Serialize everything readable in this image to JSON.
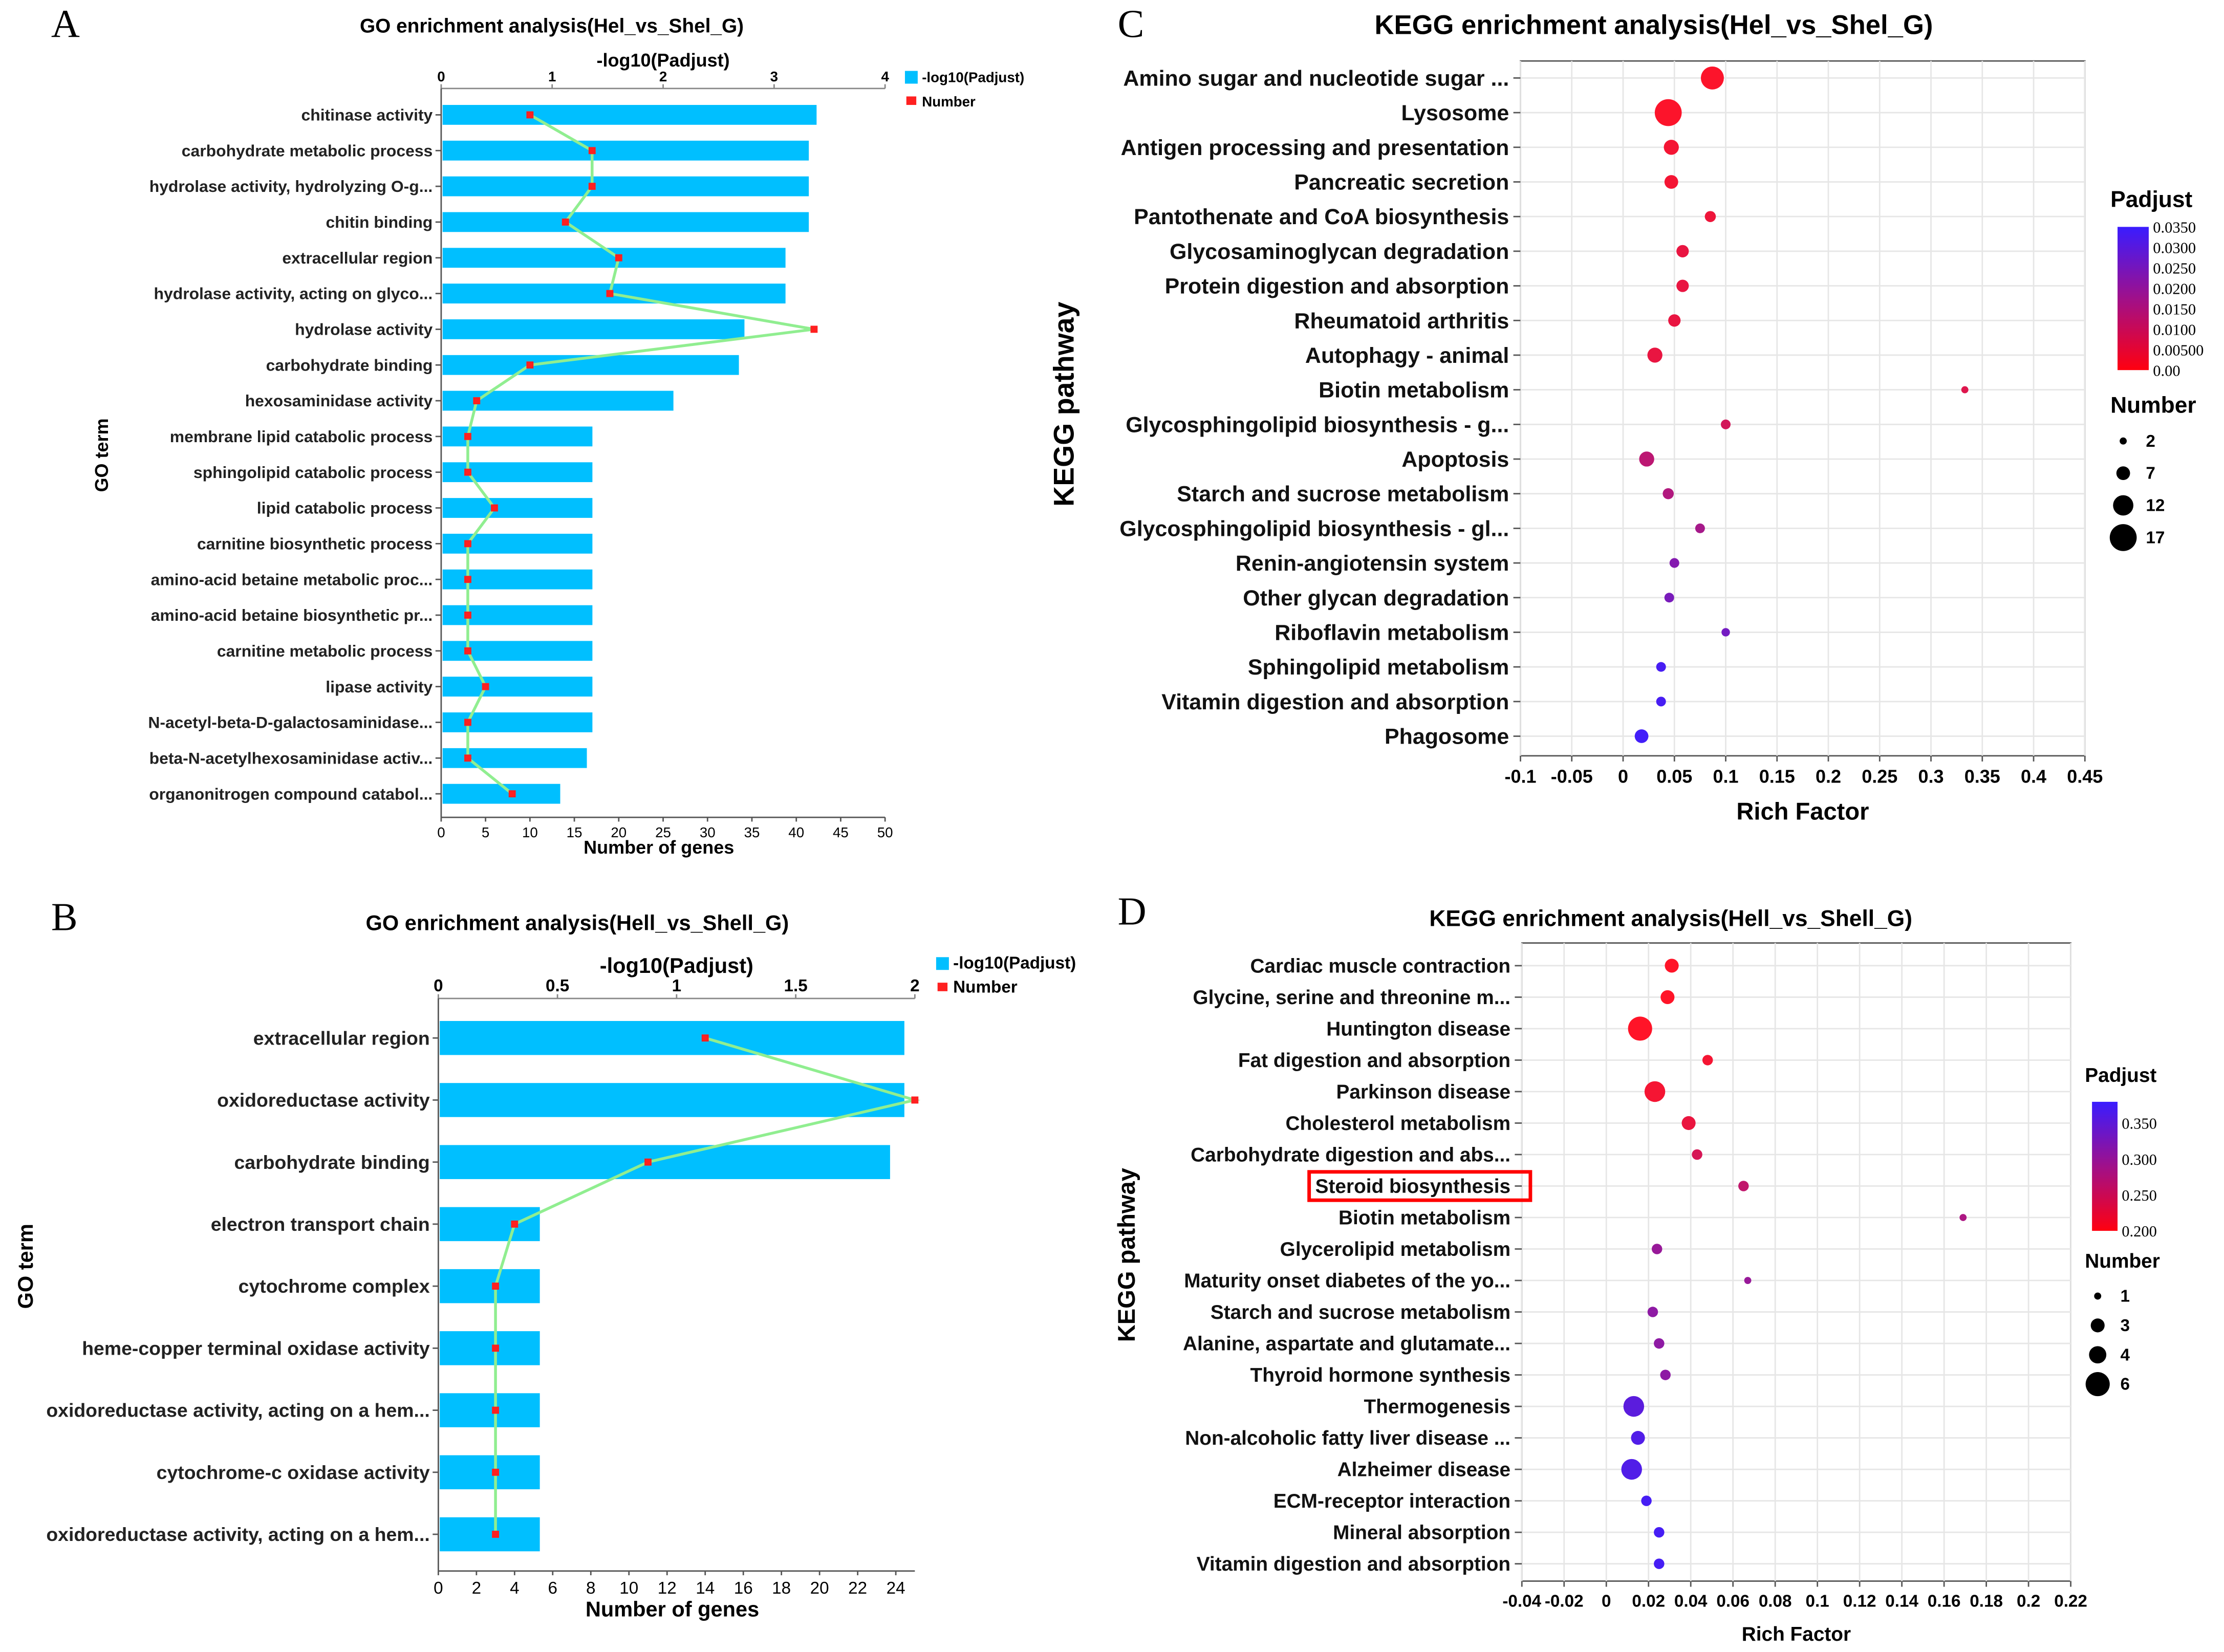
{
  "panels": [
    "A",
    "B",
    "C",
    "D"
  ],
  "colors": {
    "bar": "#00BFFF",
    "line": "#90EE90",
    "marker": "#FF2020",
    "grid": "#e6e6e6",
    "highlight": "#ff0000"
  },
  "chart_data": [
    {
      "type": "bar",
      "panel": "A",
      "title": "GO enrichment analysis(Hel_vs_Shel_G)",
      "ylabel": "GO term",
      "top_axis_label": "-log10(Padjust)",
      "xlabel": "Number of genes",
      "top_xlim": [
        0,
        4
      ],
      "top_ticks": [
        0,
        1,
        2,
        3,
        4
      ],
      "bottom_xlim": [
        0,
        50
      ],
      "bottom_ticks": [
        0,
        5,
        10,
        15,
        20,
        25,
        30,
        35,
        40,
        45,
        50
      ],
      "legend": [
        "-log10(Padjust)",
        "Number"
      ],
      "legend_position": "top-right",
      "categories": [
        "chitinase activity",
        "carbohydrate metabolic process",
        "hydrolase activity, hydrolyzing O-g...",
        "chitin binding",
        "extracellular region",
        "hydrolase activity, acting on glyco...",
        "hydrolase activity",
        "carbohydrate binding",
        "hexosaminidase activity",
        "membrane lipid catabolic process",
        "sphingolipid catabolic process",
        "lipid catabolic process",
        "carnitine biosynthetic process",
        "amino-acid betaine metabolic proc...",
        "amino-acid betaine biosynthetic pr...",
        "carnitine metabolic process",
        "lipase activity",
        "N-acetyl-beta-D-galactosaminidase...",
        "beta-N-acetylhexosaminidase activ...",
        "organonitrogen compound catabol..."
      ],
      "series": [
        {
          "name": "-log10(Padjust)",
          "values": [
            3.37,
            3.3,
            3.3,
            3.3,
            3.09,
            3.09,
            2.72,
            2.67,
            2.08,
            1.35,
            1.35,
            1.35,
            1.35,
            1.35,
            1.35,
            1.35,
            1.35,
            1.35,
            1.3,
            1.06
          ]
        },
        {
          "name": "Number",
          "values": [
            10,
            17,
            17,
            14,
            20,
            19,
            42,
            10,
            4,
            3,
            3,
            6,
            3,
            3,
            3,
            3,
            5,
            3,
            3,
            8
          ]
        }
      ]
    },
    {
      "type": "bar",
      "panel": "B",
      "title": "GO enrichment analysis(Hell_vs_Shell_G)",
      "ylabel": "GO term",
      "top_axis_label": "-log10(Padjust)",
      "xlabel": "Number of genes",
      "top_xlim": [
        0,
        2
      ],
      "top_ticks": [
        0,
        0.5,
        1,
        1.5,
        2
      ],
      "bottom_xlim": [
        0,
        25
      ],
      "bottom_ticks": [
        0,
        2,
        4,
        6,
        8,
        10,
        12,
        14,
        16,
        18,
        20,
        22,
        24
      ],
      "legend": [
        "-log10(Padjust)",
        "Number"
      ],
      "legend_position": "top-right",
      "categories": [
        "extracellular region",
        "oxidoreductase activity",
        "carbohydrate binding",
        "electron transport chain",
        "cytochrome complex",
        "heme-copper terminal oxidase activity",
        "oxidoreductase activity, acting on a hem...",
        "cytochrome-c oxidase activity",
        "oxidoreductase activity, acting on a hem..."
      ],
      "series": [
        {
          "name": "-log10(Padjust)",
          "values": [
            1.95,
            1.95,
            1.89,
            0.42,
            0.42,
            0.42,
            0.42,
            0.42,
            0.42
          ]
        },
        {
          "name": "Number",
          "values": [
            14,
            25,
            11,
            4,
            3,
            3,
            3,
            3,
            3
          ]
        }
      ]
    },
    {
      "type": "scatter",
      "panel": "C",
      "title": "KEGG enrichment analysis(Hel_vs_Shel_G)",
      "xlabel": "Rich Factor",
      "ylabel": "KEGG pathway",
      "xlim": [
        -0.1,
        0.45
      ],
      "xticks": [
        "-0.1",
        "-0.05",
        "0",
        "0.05",
        "0.1",
        "0.15",
        "0.2",
        "0.25",
        "0.3",
        "0.35",
        "0.4",
        "0.45"
      ],
      "grid": true,
      "color_legend": {
        "title": "Padjust",
        "range": [
          0,
          0.035
        ],
        "ticks": [
          "0.0350",
          "0.0300",
          "0.0250",
          "0.0200",
          "0.0150",
          "0.0100",
          "0.00500",
          "0.00"
        ]
      },
      "size_legend": {
        "title": "Number",
        "values": [
          2,
          7,
          12,
          17
        ]
      },
      "legend_position": "right",
      "categories": [
        "Amino sugar and nucleotide sugar ...",
        "Lysosome",
        "Antigen processing and presentation",
        "Pancreatic secretion",
        "Pantothenate and CoA biosynthesis",
        "Glycosaminoglycan degradation",
        "Protein digestion and absorption",
        "Rheumatoid arthritis",
        "Autophagy - animal",
        "Biotin metabolism",
        "Glycosphingolipid biosynthesis - g...",
        "Apoptosis",
        "Starch and sucrose metabolism",
        "Glycosphingolipid biosynthesis - gl...",
        "Renin-angiotensin system",
        "Other glycan degradation",
        "Riboflavin metabolism",
        "Sphingolipid metabolism",
        "Vitamin digestion and absorption",
        "Phagosome"
      ],
      "rich_factor": [
        0.087,
        0.044,
        0.047,
        0.047,
        0.085,
        0.058,
        0.058,
        0.05,
        0.031,
        0.333,
        0.1,
        0.023,
        0.044,
        0.075,
        0.05,
        0.045,
        0.1,
        0.037,
        0.037,
        0.018
      ],
      "number": [
        14,
        17,
        8,
        7,
        5,
        6,
        6,
        6,
        8,
        2,
        4,
        8,
        5,
        4,
        4,
        4,
        3,
        4,
        4,
        7
      ],
      "padjust": [
        0.0005,
        0.0005,
        0.002,
        0.002,
        0.003,
        0.004,
        0.004,
        0.004,
        0.004,
        0.006,
        0.008,
        0.012,
        0.014,
        0.016,
        0.022,
        0.024,
        0.025,
        0.033,
        0.033,
        0.034
      ]
    },
    {
      "type": "scatter",
      "panel": "D",
      "title": "KEGG enrichment analysis(Hell_vs_Shell_G)",
      "xlabel": "Rich Factor",
      "ylabel": "KEGG pathway",
      "xlim": [
        -0.04,
        0.22
      ],
      "xticks": [
        "-0.04",
        "-0.02",
        "0",
        "0.02",
        "0.04",
        "0.06",
        "0.08",
        "0.1",
        "0.12",
        "0.14",
        "0.16",
        "0.18",
        "0.2",
        "0.22"
      ],
      "grid": true,
      "highlighted": "Steroid biosynthesis",
      "color_legend": {
        "title": "Padjust",
        "range": [
          0.2,
          0.39
        ],
        "ticks": [
          "0.350",
          "0.300",
          "0.250",
          "0.200"
        ]
      },
      "size_legend": {
        "title": "Number",
        "values": [
          1,
          3,
          4,
          6
        ]
      },
      "legend_position": "right",
      "categories": [
        "Cardiac muscle contraction",
        "Glycine, serine and threonine m...",
        "Huntington disease",
        "Fat digestion and absorption",
        "Parkinson disease",
        "Cholesterol metabolism",
        "Carbohydrate digestion and abs...",
        "Steroid biosynthesis",
        "Biotin metabolism",
        "Glycerolipid metabolism",
        "Maturity onset diabetes of the yo...",
        "Starch and sucrose metabolism",
        "Alanine, aspartate and glutamate...",
        "Thyroid hormone synthesis",
        "Thermogenesis",
        "Non-alcoholic fatty liver disease ...",
        "Alzheimer disease",
        "ECM-receptor interaction",
        "Mineral absorption",
        "Vitamin digestion and absorption"
      ],
      "rich_factor": [
        0.031,
        0.029,
        0.016,
        0.048,
        0.023,
        0.039,
        0.043,
        0.065,
        0.169,
        0.024,
        0.067,
        0.022,
        0.025,
        0.028,
        0.013,
        0.015,
        0.012,
        0.019,
        0.025,
        0.025
      ],
      "number": [
        3,
        3,
        6,
        2,
        5,
        3,
        2,
        2,
        1,
        2,
        1,
        2,
        2,
        2,
        5,
        3,
        5,
        2,
        2,
        2
      ],
      "padjust": [
        0.2,
        0.2,
        0.2,
        0.21,
        0.21,
        0.22,
        0.24,
        0.26,
        0.28,
        0.3,
        0.3,
        0.31,
        0.31,
        0.31,
        0.36,
        0.37,
        0.37,
        0.38,
        0.38,
        0.38
      ]
    }
  ]
}
